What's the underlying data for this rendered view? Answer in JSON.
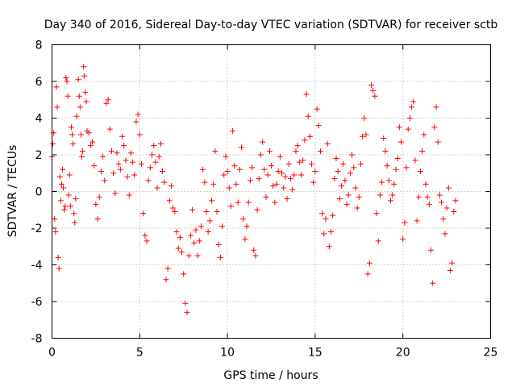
{
  "chart_data": {
    "type": "scatter",
    "title": "Day 340 of 2016, Sidereal Day-to-day VTEC variation (SDTVAR) for receiver sctb",
    "xlabel": "GPS time / hours",
    "ylabel": "SDTVAR / TECUs",
    "xlim": [
      0,
      25
    ],
    "ylim": [
      -8,
      8
    ],
    "xticks": [
      "0",
      "5",
      "10",
      "15",
      "20",
      "25"
    ],
    "yticks": [
      "8",
      "6",
      "4",
      "2",
      "0",
      "-2",
      "-4",
      "-6",
      "-8"
    ],
    "grid": true,
    "marker": "+",
    "color": "#ff0000",
    "series": [
      {
        "name": "SDTVAR",
        "points": [
          [
            0.0,
            1.9
          ],
          [
            0.05,
            2.6
          ],
          [
            0.1,
            3.2
          ],
          [
            0.15,
            -1.5
          ],
          [
            0.2,
            -2.2
          ],
          [
            0.25,
            5.7
          ],
          [
            0.3,
            4.6
          ],
          [
            0.35,
            -3.6
          ],
          [
            0.4,
            -4.2
          ],
          [
            0.45,
            0.8
          ],
          [
            0.5,
            -0.5
          ],
          [
            0.55,
            0.4
          ],
          [
            0.6,
            1.2
          ],
          [
            0.65,
            0.2
          ],
          [
            0.7,
            -1.0
          ],
          [
            0.75,
            -0.8
          ],
          [
            0.8,
            6.2
          ],
          [
            0.85,
            6.0
          ],
          [
            0.9,
            5.2
          ],
          [
            0.95,
            -0.2
          ],
          [
            1.0,
            0.9
          ],
          [
            1.05,
            -0.8
          ],
          [
            1.1,
            3.5
          ],
          [
            1.15,
            3.1
          ],
          [
            1.2,
            2.6
          ],
          [
            1.25,
            -1.2
          ],
          [
            1.3,
            -1.7
          ],
          [
            1.35,
            -0.4
          ],
          [
            1.4,
            4.1
          ],
          [
            1.5,
            6.1
          ],
          [
            1.55,
            5.2
          ],
          [
            1.6,
            4.6
          ],
          [
            1.65,
            3.1
          ],
          [
            1.7,
            1.9
          ],
          [
            1.75,
            2.2
          ],
          [
            1.8,
            6.8
          ],
          [
            1.85,
            6.3
          ],
          [
            1.9,
            5.4
          ],
          [
            1.95,
            4.9
          ],
          [
            2.0,
            3.3
          ],
          [
            2.1,
            3.2
          ],
          [
            2.2,
            2.5
          ],
          [
            2.3,
            2.7
          ],
          [
            2.4,
            1.4
          ],
          [
            2.5,
            -0.7
          ],
          [
            2.6,
            -1.5
          ],
          [
            2.7,
            -0.3
          ],
          [
            2.8,
            1.1
          ],
          [
            2.9,
            1.9
          ],
          [
            3.0,
            0.6
          ],
          [
            3.1,
            4.8
          ],
          [
            3.2,
            5.0
          ],
          [
            3.3,
            3.4
          ],
          [
            3.4,
            2.2
          ],
          [
            3.5,
            1.0
          ],
          [
            3.6,
            -0.1
          ],
          [
            3.7,
            2.1
          ],
          [
            3.8,
            1.5
          ],
          [
            3.9,
            1.2
          ],
          [
            4.0,
            3.0
          ],
          [
            4.1,
            2.5
          ],
          [
            4.2,
            1.7
          ],
          [
            4.3,
            0.8
          ],
          [
            4.4,
            -0.2
          ],
          [
            4.5,
            2.1
          ],
          [
            4.6,
            1.6
          ],
          [
            4.7,
            0.9
          ],
          [
            4.8,
            3.8
          ],
          [
            4.9,
            4.2
          ],
          [
            5.0,
            3.1
          ],
          [
            5.1,
            1.5
          ],
          [
            5.2,
            -1.2
          ],
          [
            5.3,
            -2.4
          ],
          [
            5.4,
            -2.7
          ],
          [
            5.5,
            0.6
          ],
          [
            5.6,
            1.3
          ],
          [
            5.7,
            2.0
          ],
          [
            5.8,
            2.5
          ],
          [
            5.9,
            1.6
          ],
          [
            6.0,
            0.2
          ],
          [
            6.1,
            1.9
          ],
          [
            6.2,
            2.6
          ],
          [
            6.3,
            1.1
          ],
          [
            6.4,
            0.5
          ],
          [
            6.5,
            -4.8
          ],
          [
            6.6,
            -4.2
          ],
          [
            6.7,
            -0.5
          ],
          [
            6.8,
            0.3
          ],
          [
            6.9,
            -0.9
          ],
          [
            7.0,
            -1.1
          ],
          [
            7.1,
            -2.2
          ],
          [
            7.2,
            -3.1
          ],
          [
            7.3,
            -2.5
          ],
          [
            7.4,
            -3.3
          ],
          [
            7.5,
            -4.5
          ],
          [
            7.6,
            -6.1
          ],
          [
            7.7,
            -6.6
          ],
          [
            7.8,
            -3.5
          ],
          [
            7.9,
            -2.4
          ],
          [
            8.0,
            -1.0
          ],
          [
            8.1,
            -2.8
          ],
          [
            8.2,
            -2.1
          ],
          [
            8.3,
            -3.5
          ],
          [
            8.4,
            -2.7
          ],
          [
            8.5,
            -1.9
          ],
          [
            8.6,
            1.2
          ],
          [
            8.7,
            0.5
          ],
          [
            8.8,
            -1.1
          ],
          [
            8.9,
            -2.2
          ],
          [
            9.0,
            -1.6
          ],
          [
            9.1,
            -0.5
          ],
          [
            9.2,
            0.4
          ],
          [
            9.3,
            2.2
          ],
          [
            9.4,
            -1.1
          ],
          [
            9.5,
            -2.9
          ],
          [
            9.6,
            -3.6
          ],
          [
            9.7,
            -1.9
          ],
          [
            9.8,
            0.9
          ],
          [
            9.9,
            1.9
          ],
          [
            10.0,
            1.1
          ],
          [
            10.1,
            0.2
          ],
          [
            10.2,
            -0.8
          ],
          [
            10.3,
            3.3
          ],
          [
            10.4,
            1.4
          ],
          [
            10.5,
            0.4
          ],
          [
            10.6,
            -0.6
          ],
          [
            10.7,
            1.2
          ],
          [
            10.8,
            2.4
          ],
          [
            10.9,
            -1.5
          ],
          [
            11.0,
            -2.6
          ],
          [
            11.1,
            -1.9
          ],
          [
            11.2,
            -0.6
          ],
          [
            11.3,
            0.6
          ],
          [
            11.4,
            1.3
          ],
          [
            11.5,
            -3.2
          ],
          [
            11.6,
            -3.5
          ],
          [
            11.7,
            -1.0
          ],
          [
            11.8,
            0.7
          ],
          [
            11.9,
            2.0
          ],
          [
            12.0,
            2.7
          ],
          [
            12.1,
            1.2
          ],
          [
            12.2,
            -0.3
          ],
          [
            12.3,
            0.9
          ],
          [
            12.4,
            2.2
          ],
          [
            12.5,
            1.4
          ],
          [
            12.6,
            0.3
          ],
          [
            12.7,
            -0.6
          ],
          [
            12.8,
            0.4
          ],
          [
            12.9,
            1.1
          ],
          [
            13.0,
            1.9
          ],
          [
            13.1,
            1.0
          ],
          [
            13.2,
            0.2
          ],
          [
            13.3,
            0.8
          ],
          [
            13.4,
            -0.4
          ],
          [
            13.5,
            1.5
          ],
          [
            13.6,
            0.7
          ],
          [
            13.7,
            0.1
          ],
          [
            13.8,
            0.9
          ],
          [
            13.9,
            2.2
          ],
          [
            14.0,
            2.5
          ],
          [
            14.1,
            1.6
          ],
          [
            14.2,
            0.9
          ],
          [
            14.3,
            1.7
          ],
          [
            14.4,
            2.8
          ],
          [
            14.5,
            5.3
          ],
          [
            14.6,
            4.1
          ],
          [
            14.7,
            3.0
          ],
          [
            14.8,
            1.5
          ],
          [
            14.9,
            0.5
          ],
          [
            15.0,
            1.1
          ],
          [
            15.1,
            4.5
          ],
          [
            15.2,
            3.6
          ],
          [
            15.3,
            2.2
          ],
          [
            15.4,
            -1.2
          ],
          [
            15.5,
            -2.3
          ],
          [
            15.6,
            -1.5
          ],
          [
            15.7,
            2.6
          ],
          [
            15.8,
            -3.0
          ],
          [
            15.9,
            -2.2
          ],
          [
            16.0,
            -1.3
          ],
          [
            16.1,
            0.7
          ],
          [
            16.2,
            1.8
          ],
          [
            16.3,
            1.1
          ],
          [
            16.4,
            -0.4
          ],
          [
            16.5,
            0.3
          ],
          [
            16.6,
            1.5
          ],
          [
            16.7,
            0.6
          ],
          [
            16.8,
            -0.7
          ],
          [
            16.9,
            -0.2
          ],
          [
            17.0,
            1.0
          ],
          [
            17.1,
            2.0
          ],
          [
            17.2,
            1.3
          ],
          [
            17.3,
            0.2
          ],
          [
            17.4,
            -0.9
          ],
          [
            17.5,
            -0.3
          ],
          [
            17.6,
            1.5
          ],
          [
            17.7,
            3.0
          ],
          [
            17.8,
            4.0
          ],
          [
            17.9,
            3.1
          ],
          [
            18.0,
            -4.5
          ],
          [
            18.1,
            -3.9
          ],
          [
            18.2,
            5.8
          ],
          [
            18.3,
            5.5
          ],
          [
            18.4,
            5.2
          ],
          [
            18.5,
            -1.2
          ],
          [
            18.6,
            -2.7
          ],
          [
            18.7,
            -0.2
          ],
          [
            18.8,
            0.5
          ],
          [
            18.9,
            2.9
          ],
          [
            19.0,
            2.2
          ],
          [
            19.1,
            1.4
          ],
          [
            19.2,
            0.6
          ],
          [
            19.3,
            -0.5
          ],
          [
            19.4,
            -0.2
          ],
          [
            19.5,
            0.4
          ],
          [
            19.6,
            1.2
          ],
          [
            19.7,
            1.8
          ],
          [
            19.8,
            3.5
          ],
          [
            19.9,
            2.7
          ],
          [
            20.0,
            -2.6
          ],
          [
            20.1,
            -1.7
          ],
          [
            20.2,
            1.3
          ],
          [
            20.3,
            3.4
          ],
          [
            20.4,
            4.0
          ],
          [
            20.5,
            4.6
          ],
          [
            20.6,
            4.9
          ],
          [
            20.7,
            1.7
          ],
          [
            20.8,
            -1.6
          ],
          [
            20.9,
            -0.3
          ],
          [
            21.0,
            1.1
          ],
          [
            21.1,
            2.2
          ],
          [
            21.2,
            3.1
          ],
          [
            21.3,
            0.4
          ],
          [
            21.4,
            -0.3
          ],
          [
            21.5,
            -0.7
          ],
          [
            21.6,
            -3.2
          ],
          [
            21.7,
            -5.0
          ],
          [
            21.8,
            3.5
          ],
          [
            21.9,
            4.6
          ],
          [
            22.0,
            2.7
          ],
          [
            22.1,
            -0.2
          ],
          [
            22.2,
            -0.6
          ],
          [
            22.3,
            -1.5
          ],
          [
            22.4,
            -2.3
          ],
          [
            22.5,
            -0.9
          ],
          [
            22.6,
            0.2
          ],
          [
            22.7,
            -4.3
          ],
          [
            22.8,
            -3.9
          ],
          [
            22.9,
            -1.1
          ],
          [
            23.0,
            -0.5
          ]
        ]
      }
    ]
  }
}
